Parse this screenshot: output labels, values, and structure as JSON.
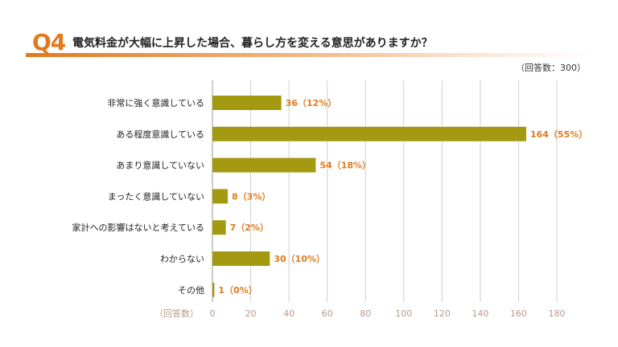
{
  "header": {
    "question_number": "Q4",
    "question_text": "電気料金が大幅に上昇した場合、暮らし方を変える意思がありますか？",
    "respondents_note": "（回答数：300）"
  },
  "colors": {
    "bar": "#a39a12",
    "accent": "#e07a1f",
    "grid": "#cfcfcf",
    "axis_text": "#b89a8a"
  },
  "chart_data": {
    "type": "bar",
    "orientation": "horizontal",
    "categories": [
      "非常に強く意識している",
      "ある程度意識している",
      "あまり意識していない",
      "まったく意識していない",
      "家計への影響はないと考えている",
      "わからない",
      "その他"
    ],
    "values": [
      36,
      164,
      54,
      8,
      7,
      30,
      1
    ],
    "value_labels": [
      "36（12%）",
      "164（55%）",
      "54（18%）",
      "8（3%）",
      "7（2%）",
      "30（10%）",
      "1（0%）"
    ],
    "xlabel": "（回答数）",
    "xlim": [
      0,
      180
    ],
    "xticks": [
      0,
      20,
      40,
      60,
      80,
      100,
      120,
      140,
      160,
      180
    ],
    "grid": true
  }
}
